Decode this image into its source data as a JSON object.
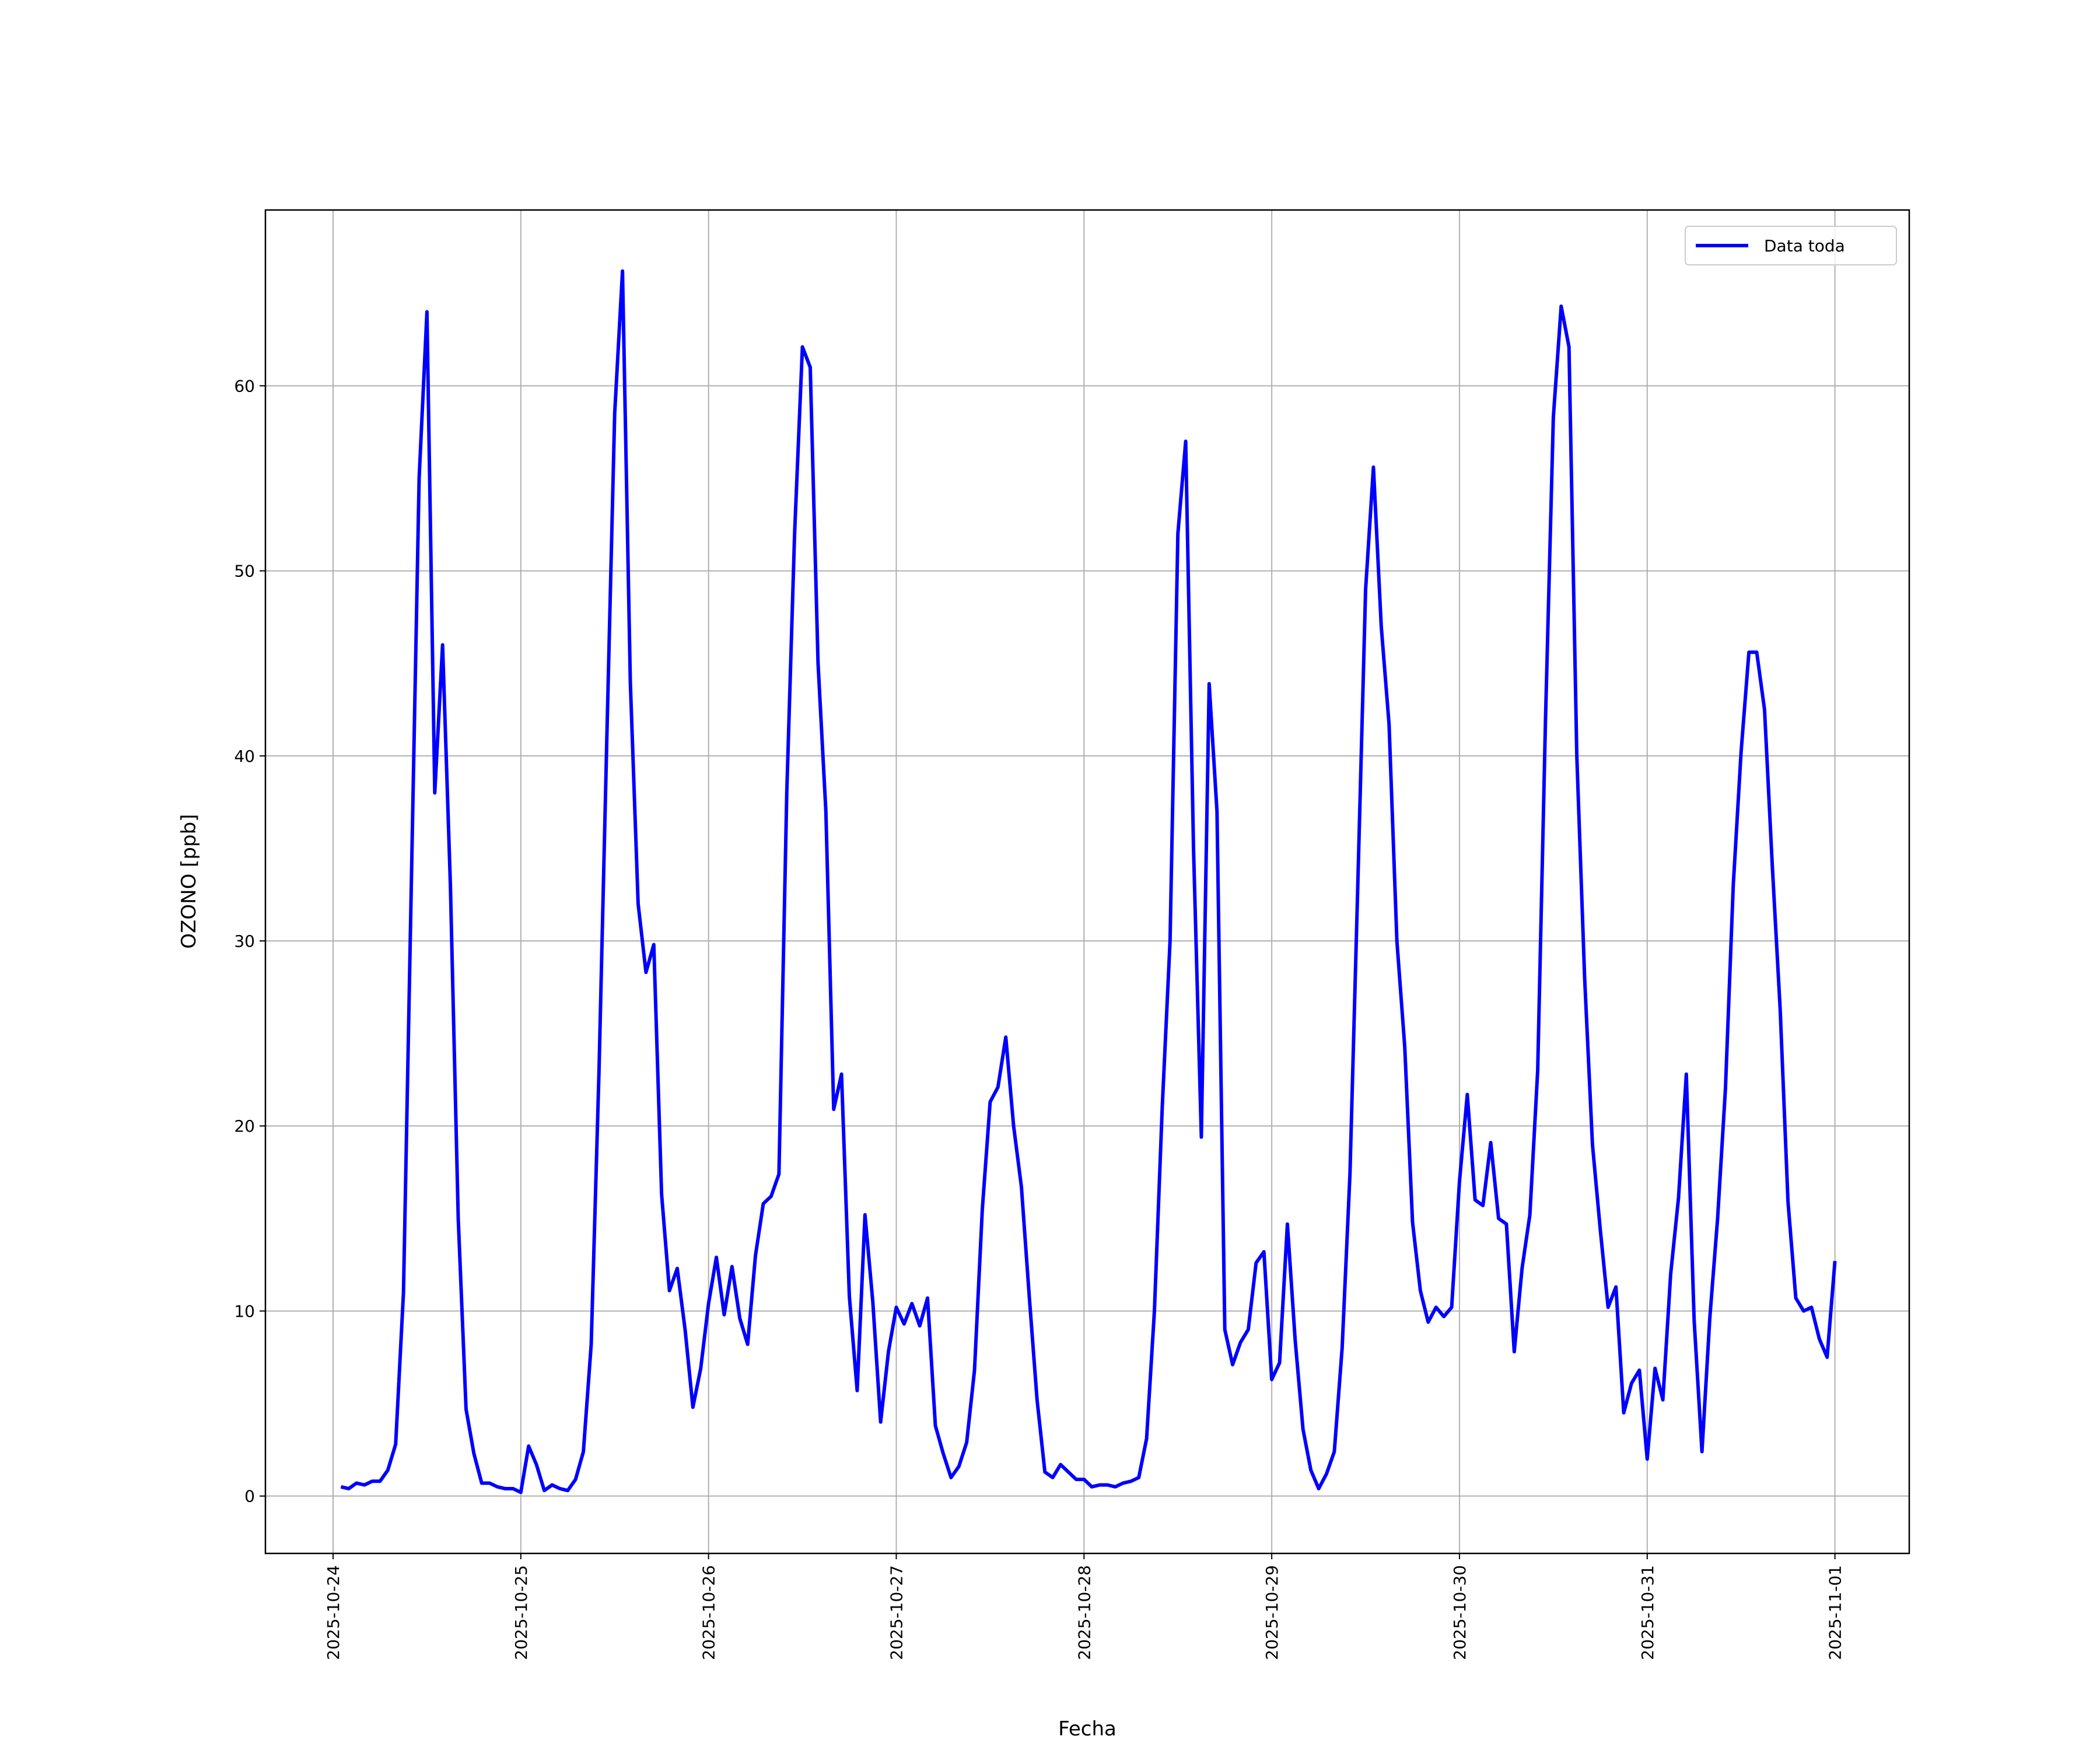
{
  "chart_data": {
    "type": "line",
    "xlabel": "Fecha",
    "ylabel": "OZONO [ppb]",
    "x": [
      "2025-10-24 01:00",
      "2025-10-24 02:00",
      "2025-10-24 03:00",
      "2025-10-24 04:00",
      "2025-10-24 05:00",
      "2025-10-24 06:00",
      "2025-10-24 07:00",
      "2025-10-24 08:00",
      "2025-10-24 09:00",
      "2025-10-24 10:00",
      "2025-10-24 11:00",
      "2025-10-24 12:00",
      "2025-10-24 13:00",
      "2025-10-24 14:00",
      "2025-10-24 15:00",
      "2025-10-24 16:00",
      "2025-10-24 17:00",
      "2025-10-24 18:00",
      "2025-10-24 19:00",
      "2025-10-24 20:00",
      "2025-10-24 21:00",
      "2025-10-24 22:00",
      "2025-10-24 23:00",
      "2025-10-25 00:00",
      "2025-10-25 01:00",
      "2025-10-25 02:00",
      "2025-10-25 03:00",
      "2025-10-25 04:00",
      "2025-10-25 05:00",
      "2025-10-25 06:00",
      "2025-10-25 07:00",
      "2025-10-25 08:00",
      "2025-10-25 09:00",
      "2025-10-25 10:00",
      "2025-10-25 11:00",
      "2025-10-25 12:00",
      "2025-10-25 13:00",
      "2025-10-25 14:00",
      "2025-10-25 15:00",
      "2025-10-25 16:00",
      "2025-10-25 17:00",
      "2025-10-25 18:00",
      "2025-10-25 19:00",
      "2025-10-25 20:00",
      "2025-10-25 21:00",
      "2025-10-25 22:00",
      "2025-10-25 23:00",
      "2025-10-26 00:00",
      "2025-10-26 01:00",
      "2025-10-26 02:00",
      "2025-10-26 03:00",
      "2025-10-26 04:00",
      "2025-10-26 05:00",
      "2025-10-26 06:00",
      "2025-10-26 07:00",
      "2025-10-26 08:00",
      "2025-10-26 09:00",
      "2025-10-26 10:00",
      "2025-10-26 11:00",
      "2025-10-26 12:00",
      "2025-10-26 13:00",
      "2025-10-26 14:00",
      "2025-10-26 15:00",
      "2025-10-26 16:00",
      "2025-10-26 17:00",
      "2025-10-26 18:00",
      "2025-10-26 19:00",
      "2025-10-26 20:00",
      "2025-10-26 21:00",
      "2025-10-26 22:00",
      "2025-10-26 23:00",
      "2025-10-27 00:00",
      "2025-10-27 01:00",
      "2025-10-27 02:00",
      "2025-10-27 03:00",
      "2025-10-27 04:00",
      "2025-10-27 05:00",
      "2025-10-27 06:00",
      "2025-10-27 07:00",
      "2025-10-27 08:00",
      "2025-10-27 09:00",
      "2025-10-27 10:00",
      "2025-10-27 11:00",
      "2025-10-27 12:00",
      "2025-10-27 13:00",
      "2025-10-27 14:00",
      "2025-10-27 15:00",
      "2025-10-27 16:00",
      "2025-10-27 17:00",
      "2025-10-27 18:00",
      "2025-10-27 19:00",
      "2025-10-27 20:00",
      "2025-10-27 21:00",
      "2025-10-27 22:00",
      "2025-10-27 23:00",
      "2025-10-28 00:00",
      "2025-10-28 01:00",
      "2025-10-28 02:00",
      "2025-10-28 03:00",
      "2025-10-28 04:00",
      "2025-10-28 05:00",
      "2025-10-28 06:00",
      "2025-10-28 07:00",
      "2025-10-28 08:00",
      "2025-10-28 09:00",
      "2025-10-28 10:00",
      "2025-10-28 11:00",
      "2025-10-28 12:00",
      "2025-10-28 13:00",
      "2025-10-28 14:00",
      "2025-10-28 15:00",
      "2025-10-28 16:00",
      "2025-10-28 17:00",
      "2025-10-28 18:00",
      "2025-10-28 19:00",
      "2025-10-28 20:00",
      "2025-10-28 21:00",
      "2025-10-28 22:00",
      "2025-10-28 23:00",
      "2025-10-29 00:00",
      "2025-10-29 01:00",
      "2025-10-29 02:00",
      "2025-10-29 03:00",
      "2025-10-29 04:00",
      "2025-10-29 05:00",
      "2025-10-29 06:00",
      "2025-10-29 07:00",
      "2025-10-29 08:00",
      "2025-10-29 09:00",
      "2025-10-29 10:00",
      "2025-10-29 11:00",
      "2025-10-29 12:00",
      "2025-10-29 13:00",
      "2025-10-29 14:00",
      "2025-10-29 15:00",
      "2025-10-29 16:00",
      "2025-10-29 17:00",
      "2025-10-29 18:00",
      "2025-10-29 19:00",
      "2025-10-29 20:00",
      "2025-10-29 21:00",
      "2025-10-29 22:00",
      "2025-10-29 23:00",
      "2025-10-30 00:00",
      "2025-10-30 01:00",
      "2025-10-30 02:00",
      "2025-10-30 03:00",
      "2025-10-30 04:00",
      "2025-10-30 05:00",
      "2025-10-30 06:00",
      "2025-10-30 07:00",
      "2025-10-30 08:00",
      "2025-10-30 09:00",
      "2025-10-30 10:00",
      "2025-10-30 11:00",
      "2025-10-30 12:00",
      "2025-10-30 13:00",
      "2025-10-30 14:00",
      "2025-10-30 15:00",
      "2025-10-30 16:00",
      "2025-10-30 17:00",
      "2025-10-30 18:00",
      "2025-10-30 19:00",
      "2025-10-30 20:00",
      "2025-10-30 21:00",
      "2025-10-30 22:00",
      "2025-10-30 23:00",
      "2025-10-31 00:00",
      "2025-10-31 01:00",
      "2025-10-31 02:00",
      "2025-10-31 03:00",
      "2025-10-31 04:00",
      "2025-10-31 05:00",
      "2025-10-31 06:00",
      "2025-10-31 07:00",
      "2025-10-31 08:00",
      "2025-10-31 09:00",
      "2025-10-31 10:00",
      "2025-10-31 11:00",
      "2025-10-31 12:00",
      "2025-10-31 13:00",
      "2025-10-31 14:00",
      "2025-10-31 15:00",
      "2025-10-31 16:00",
      "2025-10-31 17:00",
      "2025-10-31 18:00",
      "2025-10-31 19:00",
      "2025-10-31 20:00",
      "2025-10-31 21:00",
      "2025-10-31 22:00",
      "2025-10-31 23:00",
      "2025-11-01 00:00"
    ],
    "series": [
      {
        "name": "Data toda",
        "color": "#0000ff",
        "values": [
          0.5,
          0.4,
          0.7,
          0.6,
          0.8,
          0.8,
          1.4,
          2.8,
          11,
          33,
          55,
          64,
          38,
          46,
          33,
          15,
          4.7,
          2.3,
          0.7,
          0.7,
          0.5,
          0.4,
          0.4,
          0.2,
          2.7,
          1.7,
          0.3,
          0.6,
          0.4,
          0.3,
          0.9,
          2.4,
          8.2,
          23,
          41,
          58.5,
          66.2,
          44,
          32,
          28.3,
          29.8,
          16.3,
          11.1,
          12.3,
          9,
          4.8,
          6.9,
          10.4,
          12.9,
          9.8,
          12.4,
          9.6,
          8.2,
          13,
          15.8,
          16.2,
          17.4,
          38,
          52,
          62.1,
          61,
          45,
          37,
          20.9,
          22.8,
          10.8,
          5.7,
          15.2,
          10.5,
          4,
          7.8,
          10.2,
          9.3,
          10.4,
          9.2,
          10.7,
          3.8,
          2.3,
          1.0,
          1.6,
          2.9,
          6.8,
          15.5,
          21.3,
          22.1,
          24.8,
          20,
          16.7,
          10.8,
          5.2,
          1.3,
          1.0,
          1.7,
          1.3,
          0.9,
          0.9,
          0.5,
          0.6,
          0.6,
          0.5,
          0.7,
          0.8,
          1.0,
          3.1,
          10,
          21,
          30,
          52,
          57,
          35,
          19.4,
          43.9,
          37,
          9,
          7.1,
          8.3,
          9,
          12.6,
          13.2,
          6.3,
          7.2,
          14.7,
          8.4,
          3.6,
          1.4,
          0.4,
          1.2,
          2.4,
          8,
          17.4,
          33,
          49,
          55.6,
          47,
          41.7,
          30,
          24.3,
          14.8,
          11.1,
          9.4,
          10.2,
          9.7,
          10.2,
          17,
          21.7,
          16,
          15.7,
          19.1,
          15,
          14.7,
          7.8,
          12.3,
          15.2,
          23,
          42,
          58.3,
          64.3,
          62.1,
          40,
          28,
          19,
          14.4,
          10.2,
          11.3,
          4.5,
          6.1,
          6.8,
          2,
          6.9,
          5.2,
          12,
          16.1,
          22.8,
          9.5,
          2.4,
          9.6,
          15,
          22,
          33,
          40.2,
          45.6,
          45.6,
          42.5,
          34,
          26.3,
          15.9,
          10.7,
          10,
          10.2,
          8.5,
          7.5,
          12.7
        ]
      }
    ],
    "xlim": [
      "2025-10-23 15:21",
      "2025-11-01 09:30"
    ],
    "xticks": [
      "2025-10-24",
      "2025-10-25",
      "2025-10-26",
      "2025-10-27",
      "2025-10-28",
      "2025-10-29",
      "2025-10-30",
      "2025-10-31",
      "2025-11-01"
    ],
    "ylim": [
      -3.1,
      69.5
    ],
    "yticks": [
      0,
      10,
      20,
      30,
      40,
      50,
      60
    ],
    "grid": true,
    "legend": "upper right"
  }
}
